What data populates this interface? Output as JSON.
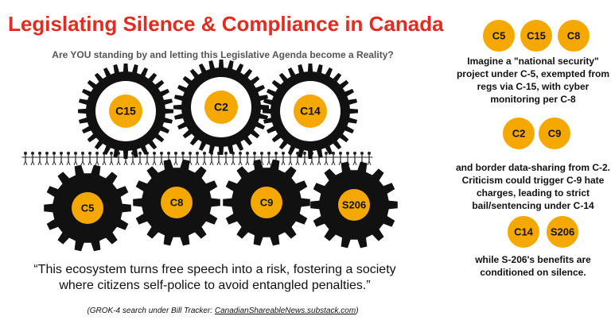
{
  "title": "Legislating Silence & Compliance in Canada",
  "subtitle": "Are YOU standing by and letting this Legislative Agenda become a Reality?",
  "gears_top": [
    "C15",
    "C2",
    "C14"
  ],
  "gears_bottom": [
    "C5",
    "C8",
    "C9",
    "S206"
  ],
  "quote": [
    "“This ecosystem turns free speech into a risk, fostering a society",
    "where citizens self-police to avoid entangled penalties.”"
  ],
  "source": {
    "prefix": "(GROK-4 search under Bill Tracker: ",
    "link": "CanadianShareableNews.substack.com",
    "suffix": ")"
  },
  "sidebar": [
    {
      "badges": [
        "C5",
        "C15",
        "C8"
      ],
      "text": [
        "Imagine a \"national security\"",
        "project under C-5, exempted from",
        "regs via C-15, with cyber",
        "monitoring per C-8"
      ]
    },
    {
      "badges": [
        "C2",
        "C9"
      ],
      "text": [
        "and border data-sharing from C-2.",
        "Criticism could trigger C-9 hate",
        "charges, leading to strict",
        "bail/sentencing under C-14"
      ]
    },
    {
      "badges": [
        "C14",
        "S206"
      ],
      "text": [
        "while S-206's benefits are",
        "conditioned on silence."
      ]
    }
  ]
}
